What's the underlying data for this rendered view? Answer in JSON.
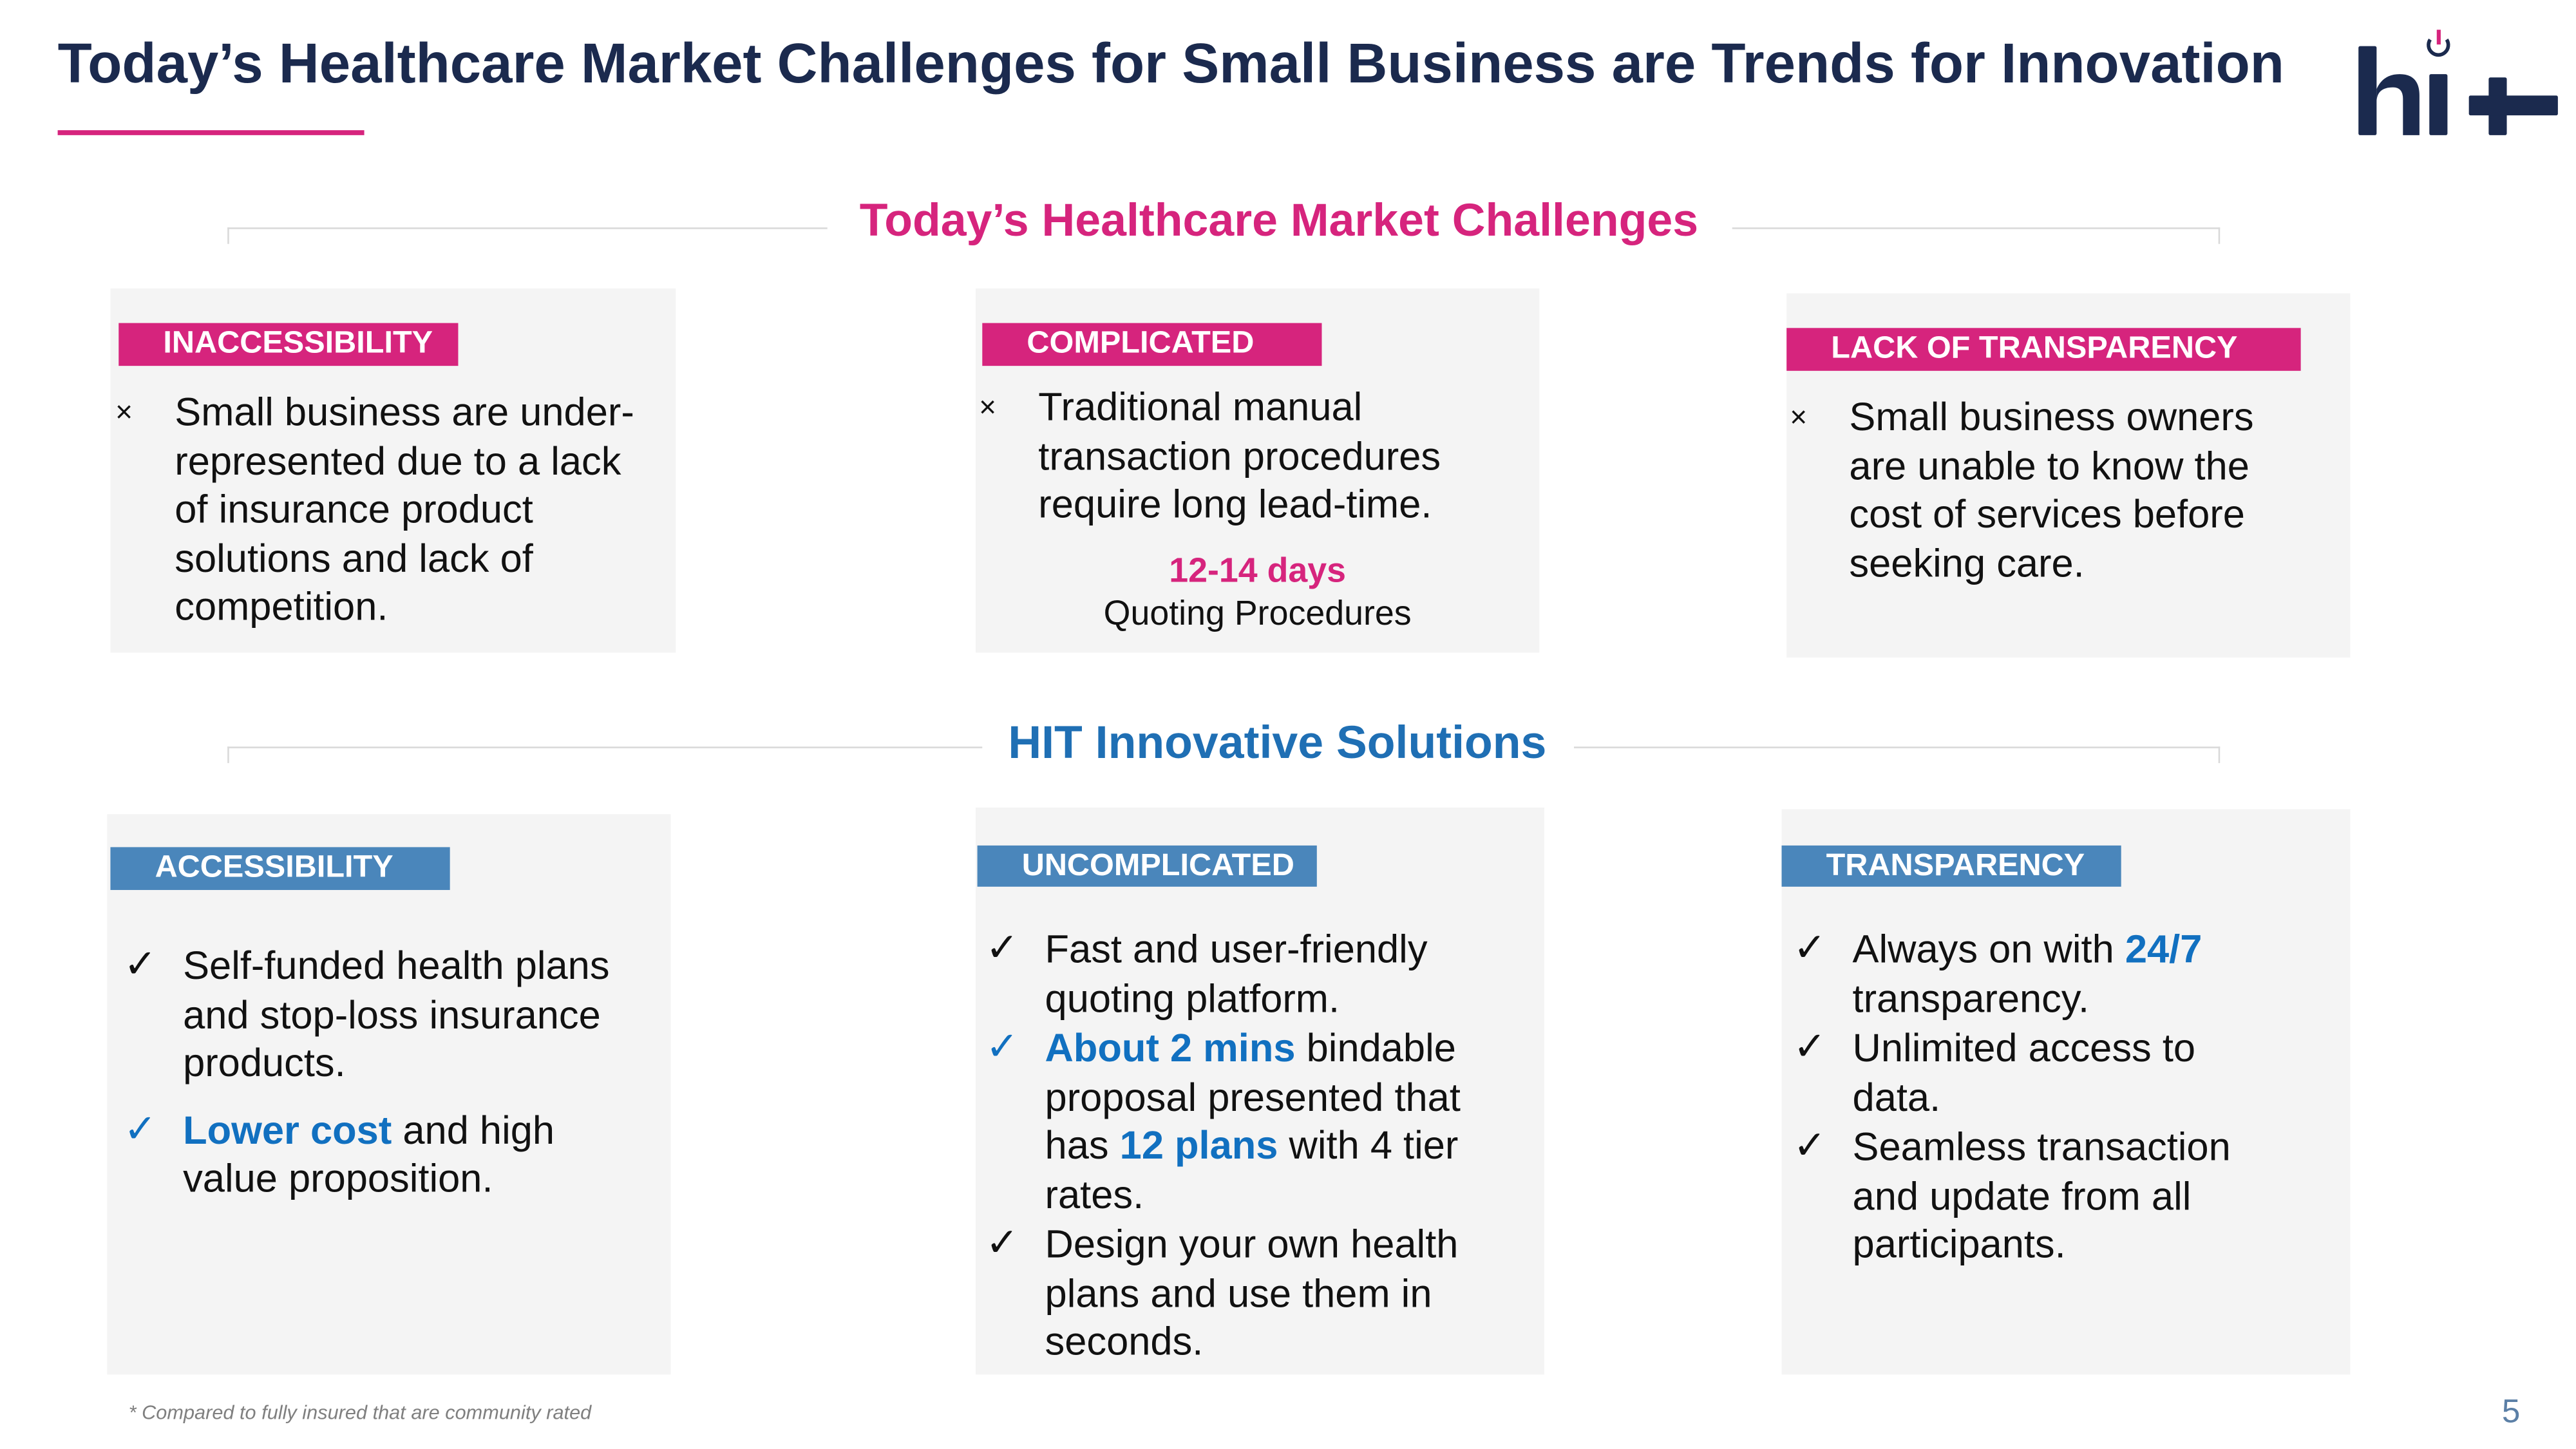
{
  "header": {
    "title": "Today’s Healthcare Market Challenges for Small Business are Trends for Innovation",
    "logo_text": "hi+"
  },
  "colors": {
    "navy": "#1b2a4e",
    "magenta": "#d6247d",
    "blue": "#1f6fb4",
    "label_blue": "#4a86bb",
    "highlight": "#1170c0"
  },
  "challenges": {
    "heading": "Today’s Healthcare Market Challenges",
    "cards": [
      {
        "label": "INACCESSIBILITY",
        "marker": "×",
        "text": "Small business are under-represented due to a lack of insurance product solutions and lack of competition."
      },
      {
        "label": "COMPLICATED",
        "marker": "×",
        "text": "Traditional manual transaction procedures require long lead-time.",
        "stat": "12-14 days",
        "stat_caption": "Quoting Procedures"
      },
      {
        "label": "LACK OF TRANSPARENCY",
        "marker": "×",
        "text": "Small business owners are unable to know the cost of services before seeking care."
      }
    ]
  },
  "solutions": {
    "heading": "HIT Innovative Solutions",
    "check": "✓",
    "accessibility": {
      "label": "ACCESSIBILITY",
      "b1": "Self-funded health plans and stop-loss insurance products.",
      "b2_hl": "Lower cost",
      "b2_rest": " and high value proposition."
    },
    "uncomplicated": {
      "label": "UNCOMPLICATED",
      "b1": "Fast and user-friendly quoting platform.",
      "b2_hl1": "About 2 mins",
      "b2_t1": " bindable proposal presented that has ",
      "b2_hl2": "12 plans",
      "b2_t2": " with 4 tier rates.",
      "b3": "Design your own health plans and use them in seconds."
    },
    "transparency": {
      "label": "TRANSPARENCY",
      "b1_t": "Always on with ",
      "b1_hl": "24/7",
      "b1_t2": " transparency.",
      "b2": "Unlimited access to data.",
      "b3": "Seamless transaction and update from all participants."
    }
  },
  "footer": {
    "note": "* Compared to fully insured that are community rated",
    "page": "5"
  }
}
